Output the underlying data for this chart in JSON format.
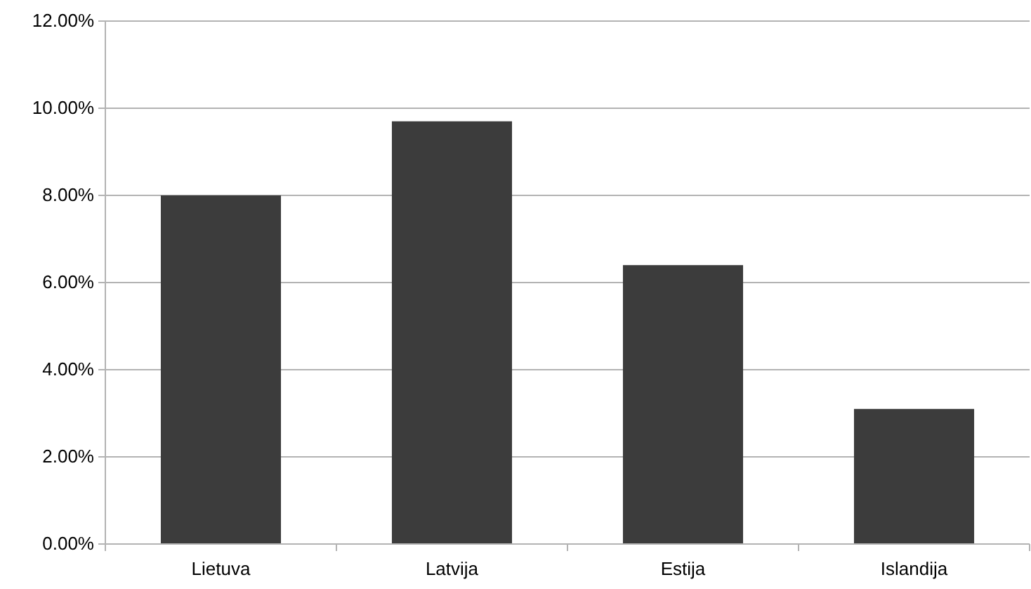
{
  "chart_data": {
    "type": "bar",
    "categories": [
      "Lietuva",
      "Latvija",
      "Estija",
      "Islandija"
    ],
    "values": [
      8.0,
      9.7,
      6.4,
      3.1
    ],
    "color": "#3c3c3c",
    "ylim": [
      0,
      12
    ],
    "yticks": [
      {
        "value": 0,
        "label": "0.00%"
      },
      {
        "value": 2,
        "label": "2.00%"
      },
      {
        "value": 4,
        "label": "4.00%"
      },
      {
        "value": 6,
        "label": "6.00%"
      },
      {
        "value": 8,
        "label": "8.00%"
      },
      {
        "value": 10,
        "label": "10.00%"
      },
      {
        "value": 12,
        "label": "12.00%"
      }
    ],
    "grid": "y"
  }
}
